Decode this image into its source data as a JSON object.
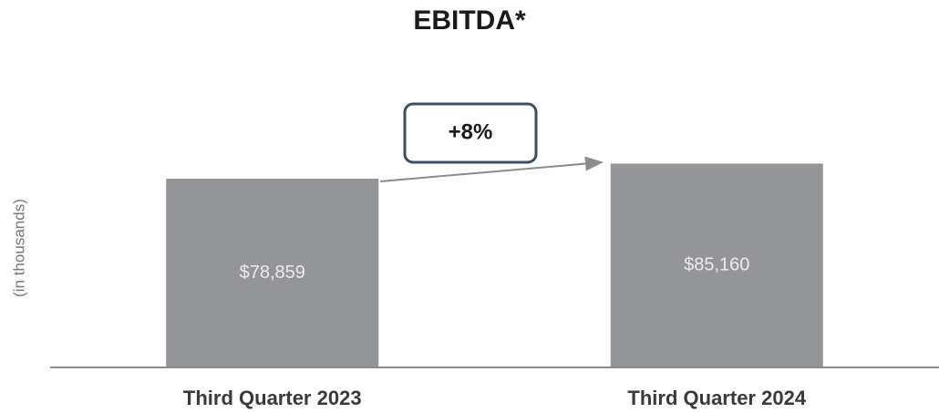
{
  "chart_data": {
    "type": "bar",
    "title": "EBITDA*",
    "ylabel": "(in thousands)",
    "annotation": "+8%",
    "categories": [
      "Third Quarter 2023",
      "Third Quarter 2024"
    ],
    "values": [
      78859,
      85160
    ],
    "value_labels": [
      "$78,859",
      "$85,160"
    ],
    "color": "#939598",
    "ylim": [
      0,
      100000
    ]
  }
}
